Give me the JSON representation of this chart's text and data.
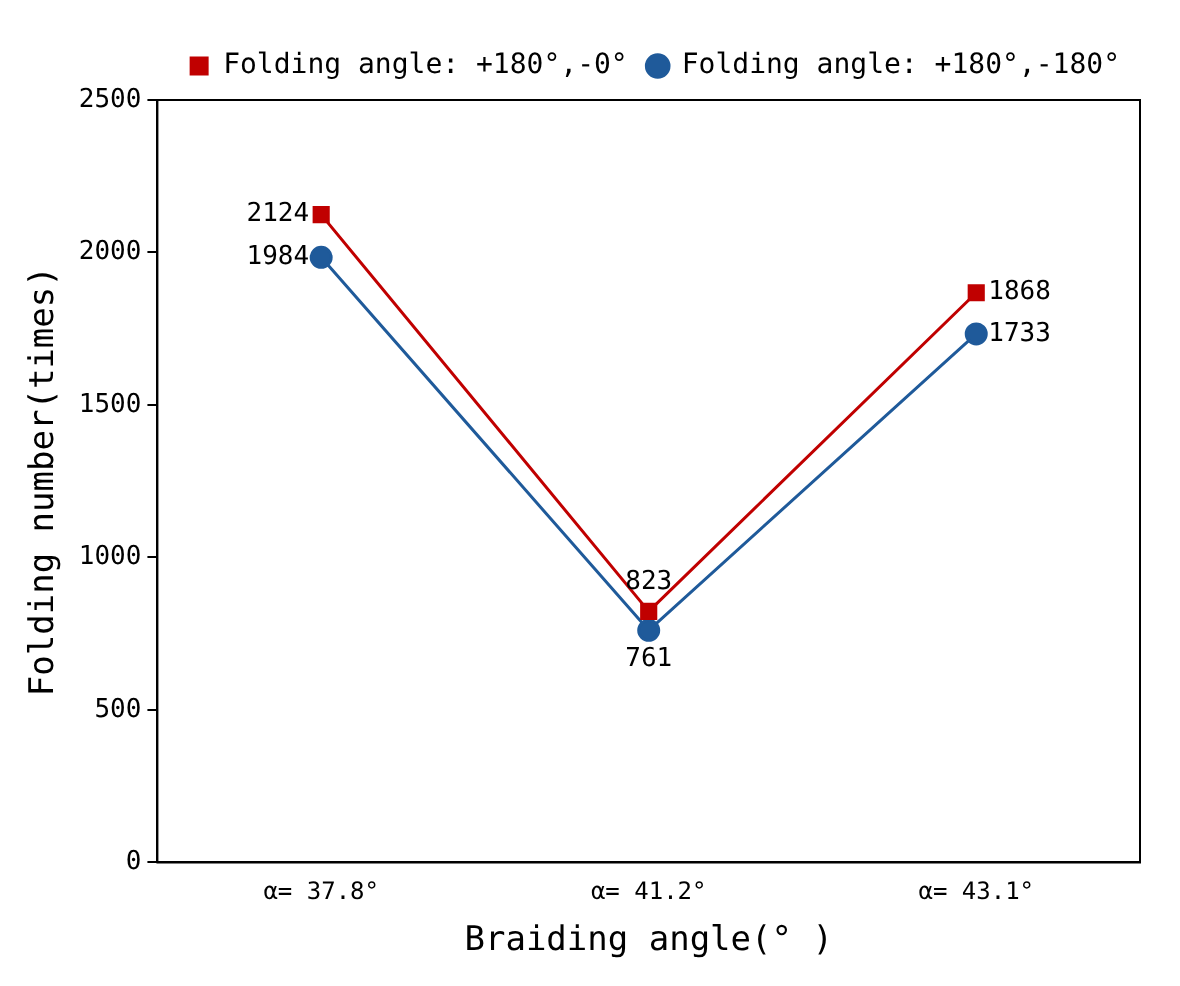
{
  "chart_data": {
    "type": "line",
    "xlabel": "Braiding angle(° )",
    "ylabel": "Folding number(times)",
    "categories": [
      "α= 37.8°",
      "α= 41.2°",
      "α= 43.1°"
    ],
    "series": [
      {
        "name": "Folding angle: +180°,-0°",
        "color": "#c00000",
        "values": [
          2124,
          823,
          1868
        ]
      },
      {
        "name": "Folding angle: +180°,-180°",
        "color": "#1f5a9a",
        "values": [
          1984,
          761,
          1733
        ]
      }
    ],
    "ylim": [
      0,
      2500
    ],
    "yticks": [
      0,
      500,
      1000,
      1500,
      2000,
      2500
    ],
    "grid": false,
    "legend": "top right",
    "data_labels": true,
    "marker": [
      "square",
      "circle"
    ],
    "line_style": "solid"
  }
}
